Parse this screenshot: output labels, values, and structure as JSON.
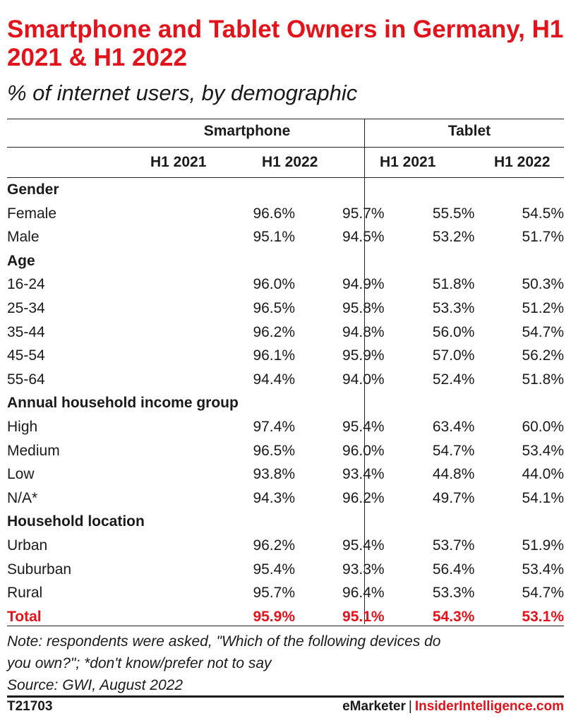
{
  "title": "Smartphone and Tablet Owners in Germany, H1 2021 & H1 2022",
  "subtitle": "% of internet users, by demographic",
  "chart_data": {
    "type": "table",
    "column_groups": [
      "Smartphone",
      "Tablet"
    ],
    "columns": [
      "H1 2021",
      "H1 2022",
      "H1 2021",
      "H1 2022"
    ],
    "rows": [
      {
        "label": "Gender",
        "section": true
      },
      {
        "label": "Female",
        "values": [
          "96.6%",
          "95.7%",
          "55.5%",
          "54.5%"
        ]
      },
      {
        "label": "Male",
        "values": [
          "95.1%",
          "94.5%",
          "53.2%",
          "51.7%"
        ]
      },
      {
        "label": "Age",
        "section": true
      },
      {
        "label": "16-24",
        "values": [
          "96.0%",
          "94.9%",
          "51.8%",
          "50.3%"
        ]
      },
      {
        "label": "25-34",
        "values": [
          "96.5%",
          "95.8%",
          "53.3%",
          "51.2%"
        ]
      },
      {
        "label": "35-44",
        "values": [
          "96.2%",
          "94.8%",
          "56.0%",
          "54.7%"
        ]
      },
      {
        "label": "45-54",
        "values": [
          "96.1%",
          "95.9%",
          "57.0%",
          "56.2%"
        ]
      },
      {
        "label": "55-64",
        "values": [
          "94.4%",
          "94.0%",
          "52.4%",
          "51.8%"
        ]
      },
      {
        "label": "Annual household income group",
        "section": true
      },
      {
        "label": "High",
        "values": [
          "97.4%",
          "95.4%",
          "63.4%",
          "60.0%"
        ]
      },
      {
        "label": "Medium",
        "values": [
          "96.5%",
          "96.0%",
          "54.7%",
          "53.4%"
        ]
      },
      {
        "label": "Low",
        "values": [
          "93.8%",
          "93.4%",
          "44.8%",
          "44.0%"
        ]
      },
      {
        "label": "N/A*",
        "values": [
          "94.3%",
          "96.2%",
          "49.7%",
          "54.1%"
        ]
      },
      {
        "label": "Household location",
        "section": true
      },
      {
        "label": "Urban",
        "values": [
          "96.2%",
          "95.4%",
          "53.7%",
          "51.9%"
        ]
      },
      {
        "label": "Suburban",
        "values": [
          "95.4%",
          "93.3%",
          "56.4%",
          "53.4%"
        ]
      },
      {
        "label": "Rural",
        "values": [
          "95.7%",
          "96.4%",
          "53.3%",
          "54.7%"
        ]
      },
      {
        "label": "Total",
        "total": true,
        "values": [
          "95.9%",
          "95.1%",
          "54.3%",
          "53.1%"
        ]
      }
    ]
  },
  "note_line1": "Note: respondents were asked, \"Which of the following devices do",
  "note_line2": "you own?\"; *don't know/prefer not to say",
  "source": "Source: GWI, August 2022",
  "footer": {
    "code": "T21703",
    "brand_emarketer": "eMarketer",
    "brand_separator": "|",
    "brand_insider": "InsiderIntelligence.com"
  },
  "colors": {
    "accent": "#e3131b",
    "text": "#1a1a1a",
    "rule": "#222222"
  }
}
